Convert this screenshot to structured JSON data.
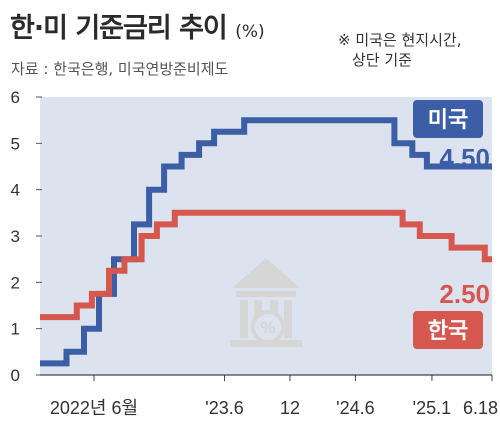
{
  "title": "한·미 기준금리 추이",
  "title_unit": "(%)",
  "source": "자료 : 한국은행, 미국연방준비제도",
  "note_line1": "※ 미국은 현지시간,",
  "note_line2": "상단 기준",
  "colors": {
    "us": "#3c5ea6",
    "korea": "#d6574d",
    "band": "#dde2ef",
    "grid": "#cfcfcf",
    "icon": "#d6d6d6"
  },
  "icon": "bank-percent-icon",
  "chart_data": {
    "type": "line",
    "title": "한·미 기준금리 추이",
    "xlabel": "",
    "ylabel": "",
    "ylim": [
      0,
      6
    ],
    "yticks": [
      0,
      1,
      2,
      3,
      4,
      5,
      6
    ],
    "xlim": [
      "2022-01-01",
      "2025-06-18"
    ],
    "xtick_labels": [
      {
        "x": "2022-06-01",
        "label": "2022년 6월"
      },
      {
        "x": "2023-06-01",
        "label": "'23.6"
      },
      {
        "x": "2023-12-01",
        "label": "12"
      },
      {
        "x": "2024-06-01",
        "label": "'24.6"
      },
      {
        "x": "2025-01-01",
        "label": "'25.1"
      },
      {
        "x": "2025-06-18",
        "label": "6.18"
      }
    ],
    "grid": false,
    "step": true,
    "series": [
      {
        "name": "미국",
        "last_value_label": "4.50",
        "color": "#3c5ea6",
        "points": [
          {
            "x": "2022-01-01",
            "y": 0.25
          },
          {
            "x": "2022-03-16",
            "y": 0.5
          },
          {
            "x": "2022-05-04",
            "y": 1.0
          },
          {
            "x": "2022-06-15",
            "y": 1.75
          },
          {
            "x": "2022-07-27",
            "y": 2.5
          },
          {
            "x": "2022-09-21",
            "y": 3.25
          },
          {
            "x": "2022-11-02",
            "y": 4.0
          },
          {
            "x": "2022-12-14",
            "y": 4.5
          },
          {
            "x": "2023-02-01",
            "y": 4.75
          },
          {
            "x": "2023-03-22",
            "y": 5.0
          },
          {
            "x": "2023-05-03",
            "y": 5.25
          },
          {
            "x": "2023-07-26",
            "y": 5.5
          },
          {
            "x": "2024-09-18",
            "y": 5.0
          },
          {
            "x": "2024-11-07",
            "y": 4.75
          },
          {
            "x": "2024-12-18",
            "y": 4.5
          },
          {
            "x": "2025-06-18",
            "y": 4.5
          }
        ]
      },
      {
        "name": "한국",
        "last_value_label": "2.50",
        "color": "#d6574d",
        "points": [
          {
            "x": "2022-01-01",
            "y": 1.25
          },
          {
            "x": "2022-01-14",
            "y": 1.25
          },
          {
            "x": "2022-04-14",
            "y": 1.5
          },
          {
            "x": "2022-05-26",
            "y": 1.75
          },
          {
            "x": "2022-07-13",
            "y": 2.25
          },
          {
            "x": "2022-08-25",
            "y": 2.5
          },
          {
            "x": "2022-10-12",
            "y": 3.0
          },
          {
            "x": "2022-11-24",
            "y": 3.25
          },
          {
            "x": "2023-01-13",
            "y": 3.5
          },
          {
            "x": "2024-10-11",
            "y": 3.25
          },
          {
            "x": "2024-11-28",
            "y": 3.0
          },
          {
            "x": "2025-02-25",
            "y": 2.75
          },
          {
            "x": "2025-05-29",
            "y": 2.5
          },
          {
            "x": "2025-06-18",
            "y": 2.5
          }
        ]
      }
    ]
  }
}
